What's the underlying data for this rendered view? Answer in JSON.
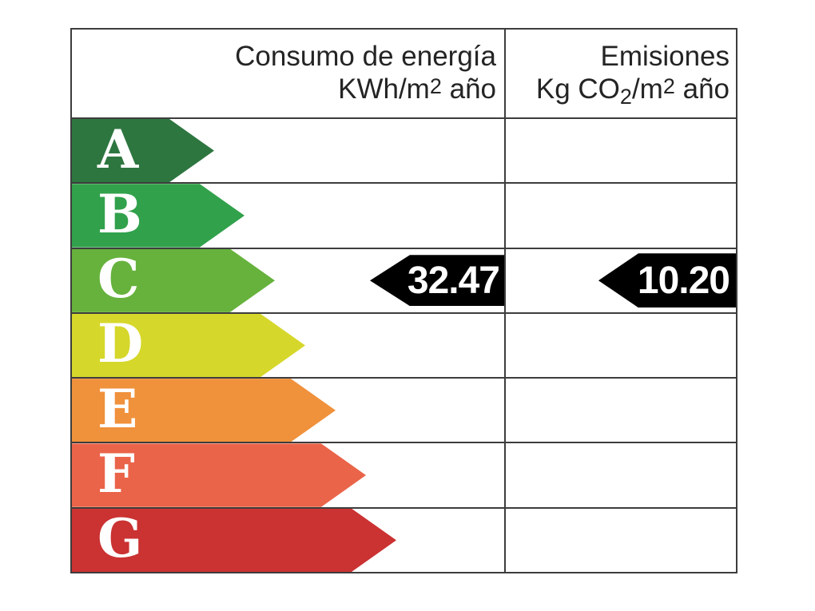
{
  "header": {
    "consumption": {
      "title": "Consumo de energía",
      "unit_prefix": "KWh/m",
      "unit_sup": "2",
      "unit_suffix": " año"
    },
    "emissions": {
      "title": "Emisiones",
      "unit_prefix": "Kg CO",
      "unit_sub": "2",
      "unit_mid": "/m",
      "unit_sup": "2",
      "unit_suffix": " año"
    }
  },
  "chart_data": {
    "type": "energy-rating-label",
    "columns": [
      "Consumo de energía KWh/m2 año",
      "Emisiones Kg CO2/m2 año"
    ],
    "ratings": [
      {
        "letter": "A",
        "color": "#2E7640",
        "arrow_width": 178
      },
      {
        "letter": "B",
        "color": "#31A14B",
        "arrow_width": 216
      },
      {
        "letter": "C",
        "color": "#66B23C",
        "arrow_width": 254
      },
      {
        "letter": "D",
        "color": "#D6D72B",
        "arrow_width": 292
      },
      {
        "letter": "E",
        "color": "#F0913C",
        "arrow_width": 330
      },
      {
        "letter": "F",
        "color": "#EA6449",
        "arrow_width": 368
      },
      {
        "letter": "G",
        "color": "#CB3232",
        "arrow_width": 406
      }
    ],
    "selected_rating": "C",
    "values": {
      "consumption": {
        "value": "32.47",
        "row": "C",
        "arrow_color": "#000000",
        "text_color": "#ffffff"
      },
      "emissions": {
        "value": "10.20",
        "row": "C",
        "arrow_color": "#000000",
        "text_color": "#ffffff"
      }
    },
    "layout_hints": {
      "border_color": "#3d3d3d",
      "background": "#ffffff",
      "legend": "none",
      "grid": "table-lines"
    }
  }
}
